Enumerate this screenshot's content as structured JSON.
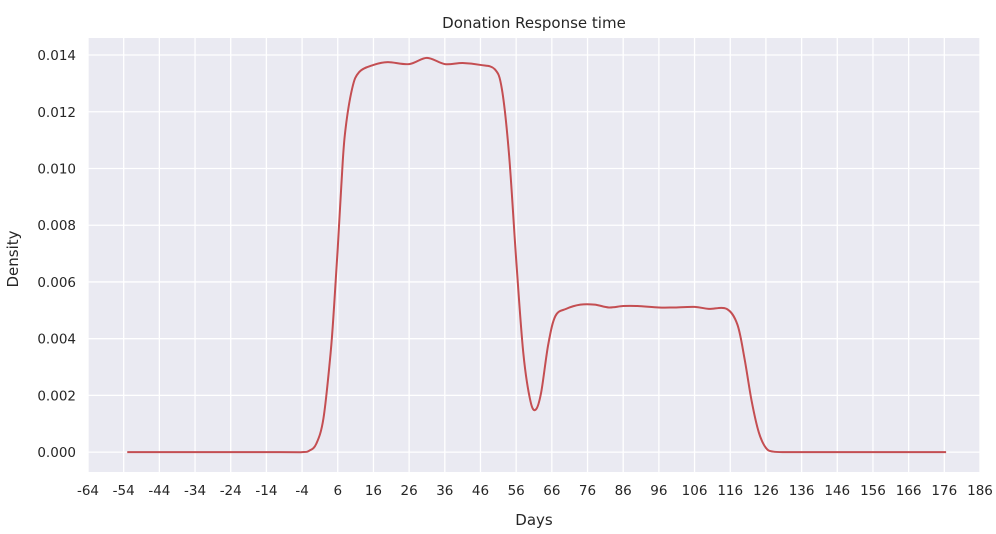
{
  "chart_data": {
    "type": "area",
    "title": "Donation Response time",
    "xlabel": "Days",
    "ylabel": "Density",
    "xlim": [
      -64,
      186
    ],
    "ylim": [
      -0.0007,
      0.0146
    ],
    "xticks": [
      -64,
      -54,
      -44,
      -34,
      -24,
      -14,
      -4,
      6,
      16,
      26,
      36,
      46,
      56,
      66,
      76,
      86,
      96,
      106,
      116,
      126,
      136,
      146,
      156,
      166,
      176,
      186
    ],
    "yticks": [
      0.0,
      0.002,
      0.004,
      0.006,
      0.008,
      0.01,
      0.012,
      0.014
    ],
    "ytick_labels": [
      "0.000",
      "0.002",
      "0.004",
      "0.006",
      "0.008",
      "0.010",
      "0.012",
      "0.014"
    ],
    "grid": true,
    "background": "#eaeaf2",
    "grid_color": "#ffffff",
    "series": [
      {
        "color": "#c44e52",
        "x": [
          -53,
          -10,
          -4,
          -2,
          0,
          2,
          4,
          5,
          6,
          7,
          8,
          10,
          12,
          16,
          20,
          26,
          31,
          36,
          41,
          46,
          50,
          52,
          54,
          56,
          58,
          60,
          61.5,
          63,
          65,
          67,
          70,
          74,
          78,
          82,
          86,
          90,
          96,
          100,
          106,
          110,
          115,
          118,
          120,
          122,
          124,
          126,
          128,
          132,
          140,
          176.5
        ],
        "y": [
          0,
          0,
          0,
          5e-05,
          0.0003,
          0.0012,
          0.0035,
          0.0052,
          0.0072,
          0.0094,
          0.0112,
          0.0128,
          0.0134,
          0.01365,
          0.01375,
          0.01368,
          0.0139,
          0.01368,
          0.01372,
          0.01365,
          0.0135,
          0.0128,
          0.0105,
          0.0068,
          0.0035,
          0.0018,
          0.0015,
          0.0021,
          0.0038,
          0.0048,
          0.00505,
          0.0052,
          0.0052,
          0.0051,
          0.00515,
          0.00515,
          0.0051,
          0.0051,
          0.00512,
          0.00505,
          0.00505,
          0.0045,
          0.0033,
          0.0018,
          0.0007,
          0.00015,
          2e-05,
          0,
          0,
          0
        ]
      }
    ]
  }
}
